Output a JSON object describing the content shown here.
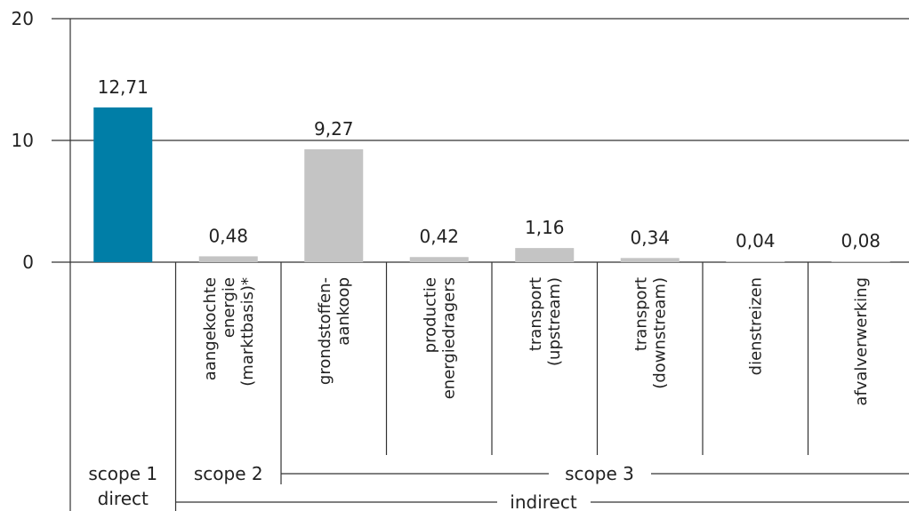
{
  "chart_data": {
    "type": "bar",
    "title": "",
    "xlabel": "",
    "ylabel": "",
    "ylim": [
      0,
      20
    ],
    "yticks": [
      "0",
      "10",
      "20"
    ],
    "grid": true,
    "categories": [
      "",
      "aangekochte energie (marktbasis)*",
      "grondstoffen-aankoop",
      "productie energiedragers",
      "transport (upstream)",
      "transport (downstream)",
      "dienstreizen",
      "afvalverwerking"
    ],
    "category_lines": [
      [],
      [
        "aangekochte",
        "energie",
        "(marktbasis)*"
      ],
      [
        "grondstoffen-",
        "aankoop"
      ],
      [
        "productie",
        "energiedragers"
      ],
      [
        "transport",
        "(upstream)"
      ],
      [
        "transport",
        "(downstream)"
      ],
      [
        "dienstreizen"
      ],
      [
        "afvalverwerking"
      ]
    ],
    "values": [
      12.71,
      0.48,
      9.27,
      0.42,
      1.16,
      0.34,
      0.04,
      0.08
    ],
    "value_labels": [
      "12,71",
      "0,48",
      "9,27",
      "0,42",
      "1,16",
      "0,34",
      "0,04",
      "0,08"
    ],
    "colors": {
      "highlight": "#007ea7",
      "default": "#c4c4c4",
      "axis": "#333333"
    },
    "groups": {
      "scope1": [
        "scope 1",
        "direct"
      ],
      "scope2": "scope 2",
      "scope3": "scope 3",
      "indirect": "indirect"
    }
  }
}
